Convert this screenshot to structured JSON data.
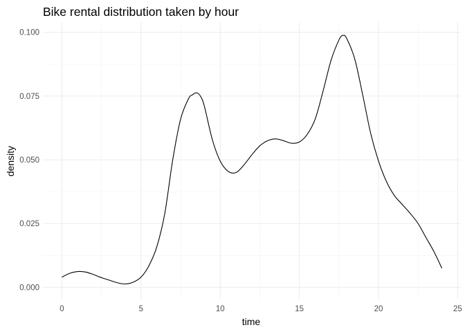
{
  "chart_data": {
    "type": "line",
    "title": "Bike rental distribution taken by hour",
    "xlabel": "time",
    "ylabel": "density",
    "xlim": [
      -1.2,
      25.2
    ],
    "ylim": [
      -0.0045,
      0.104
    ],
    "x_ticks": [
      0,
      5,
      10,
      15,
      20,
      25
    ],
    "x_tick_labels": [
      "0",
      "5",
      "10",
      "15",
      "20",
      "25"
    ],
    "y_ticks": [
      0.0,
      0.025,
      0.05,
      0.075,
      0.1
    ],
    "y_tick_labels": [
      "0.000",
      "0.025",
      "0.050",
      "0.075",
      "0.100"
    ],
    "grid": true,
    "legend": "none",
    "line_color": "#000000",
    "series": [
      {
        "x": [
          0,
          0.5,
          1,
          1.5,
          2,
          2.5,
          3,
          3.5,
          4,
          4.5,
          5,
          5.5,
          6,
          6.5,
          7,
          7.5,
          8,
          8.25,
          8.5,
          8.75,
          9,
          9.5,
          10,
          10.5,
          11,
          11.5,
          12,
          12.5,
          13,
          13.5,
          14,
          14.5,
          15,
          15.5,
          16,
          16.5,
          17,
          17.5,
          17.75,
          18,
          18.5,
          19,
          19.5,
          20,
          20.5,
          21,
          21.5,
          22,
          22.5,
          23,
          23.5,
          24
        ],
        "y": [
          0.004,
          0.0055,
          0.0062,
          0.006,
          0.005,
          0.0038,
          0.0028,
          0.0018,
          0.0013,
          0.002,
          0.004,
          0.0085,
          0.016,
          0.029,
          0.05,
          0.066,
          0.074,
          0.0755,
          0.0763,
          0.075,
          0.071,
          0.058,
          0.0495,
          0.0455,
          0.045,
          0.048,
          0.052,
          0.0555,
          0.0575,
          0.0582,
          0.0575,
          0.0565,
          0.057,
          0.06,
          0.066,
          0.077,
          0.089,
          0.097,
          0.0988,
          0.0975,
          0.0895,
          0.0755,
          0.0605,
          0.0495,
          0.0415,
          0.036,
          0.0325,
          0.029,
          0.025,
          0.0195,
          0.014,
          0.0075
        ]
      }
    ]
  }
}
